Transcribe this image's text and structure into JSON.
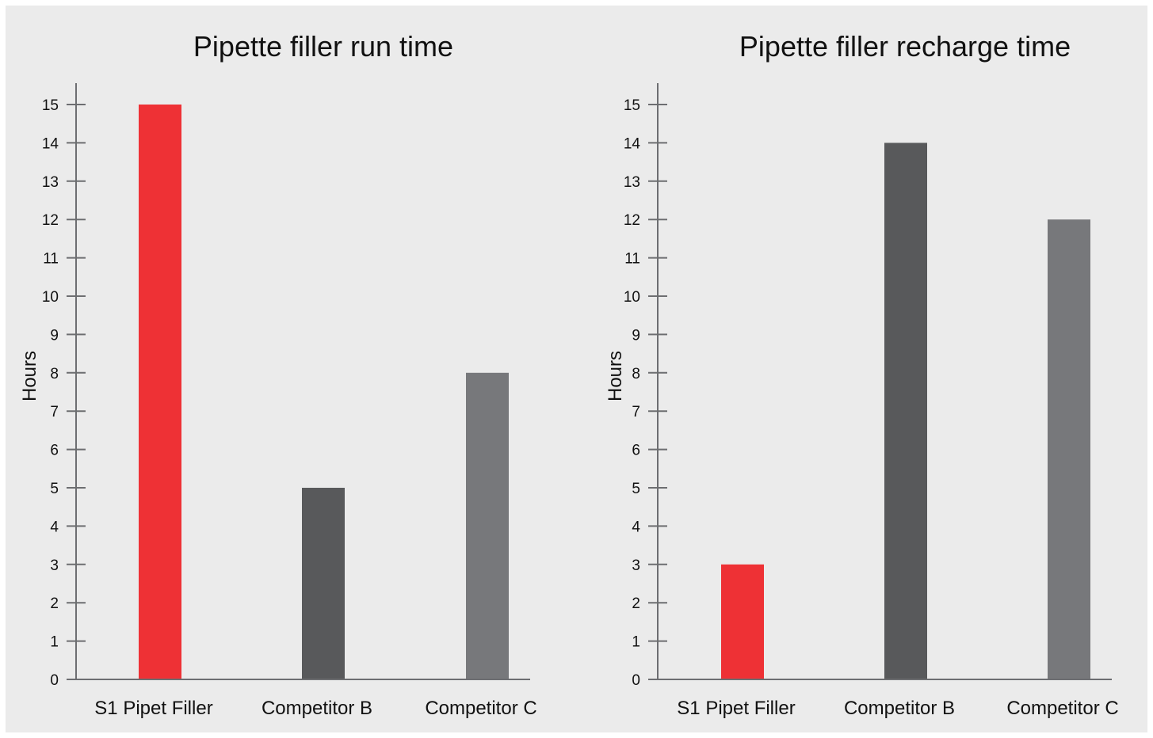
{
  "chart_data": [
    {
      "type": "bar",
      "title": "Pipette filler run time",
      "xlabel": "",
      "ylabel": "Hours",
      "categories": [
        "S1 Pipet Filler",
        "Competitor B",
        "Competitor C"
      ],
      "values": [
        15,
        5,
        8
      ],
      "bar_colors": [
        "#ee3135",
        "#58595b",
        "#77787b"
      ],
      "ylim": [
        0,
        15
      ],
      "yticks": [
        0,
        1,
        2,
        3,
        4,
        5,
        6,
        7,
        8,
        9,
        10,
        11,
        12,
        13,
        14,
        15
      ],
      "grid": false,
      "legend": "none"
    },
    {
      "type": "bar",
      "title": "Pipette filler recharge time",
      "xlabel": "",
      "ylabel": "Hours",
      "categories": [
        "S1 Pipet Filler",
        "Competitor B",
        "Competitor C"
      ],
      "values": [
        3,
        14,
        12
      ],
      "bar_colors": [
        "#ee3135",
        "#58595b",
        "#77787b"
      ],
      "ylim": [
        0,
        15
      ],
      "yticks": [
        0,
        1,
        2,
        3,
        4,
        5,
        6,
        7,
        8,
        9,
        10,
        11,
        12,
        13,
        14,
        15
      ],
      "grid": false,
      "legend": "none"
    }
  ],
  "colors": {
    "background": "#ebebeb",
    "axis": "#6d6e71",
    "text": "#111111"
  }
}
